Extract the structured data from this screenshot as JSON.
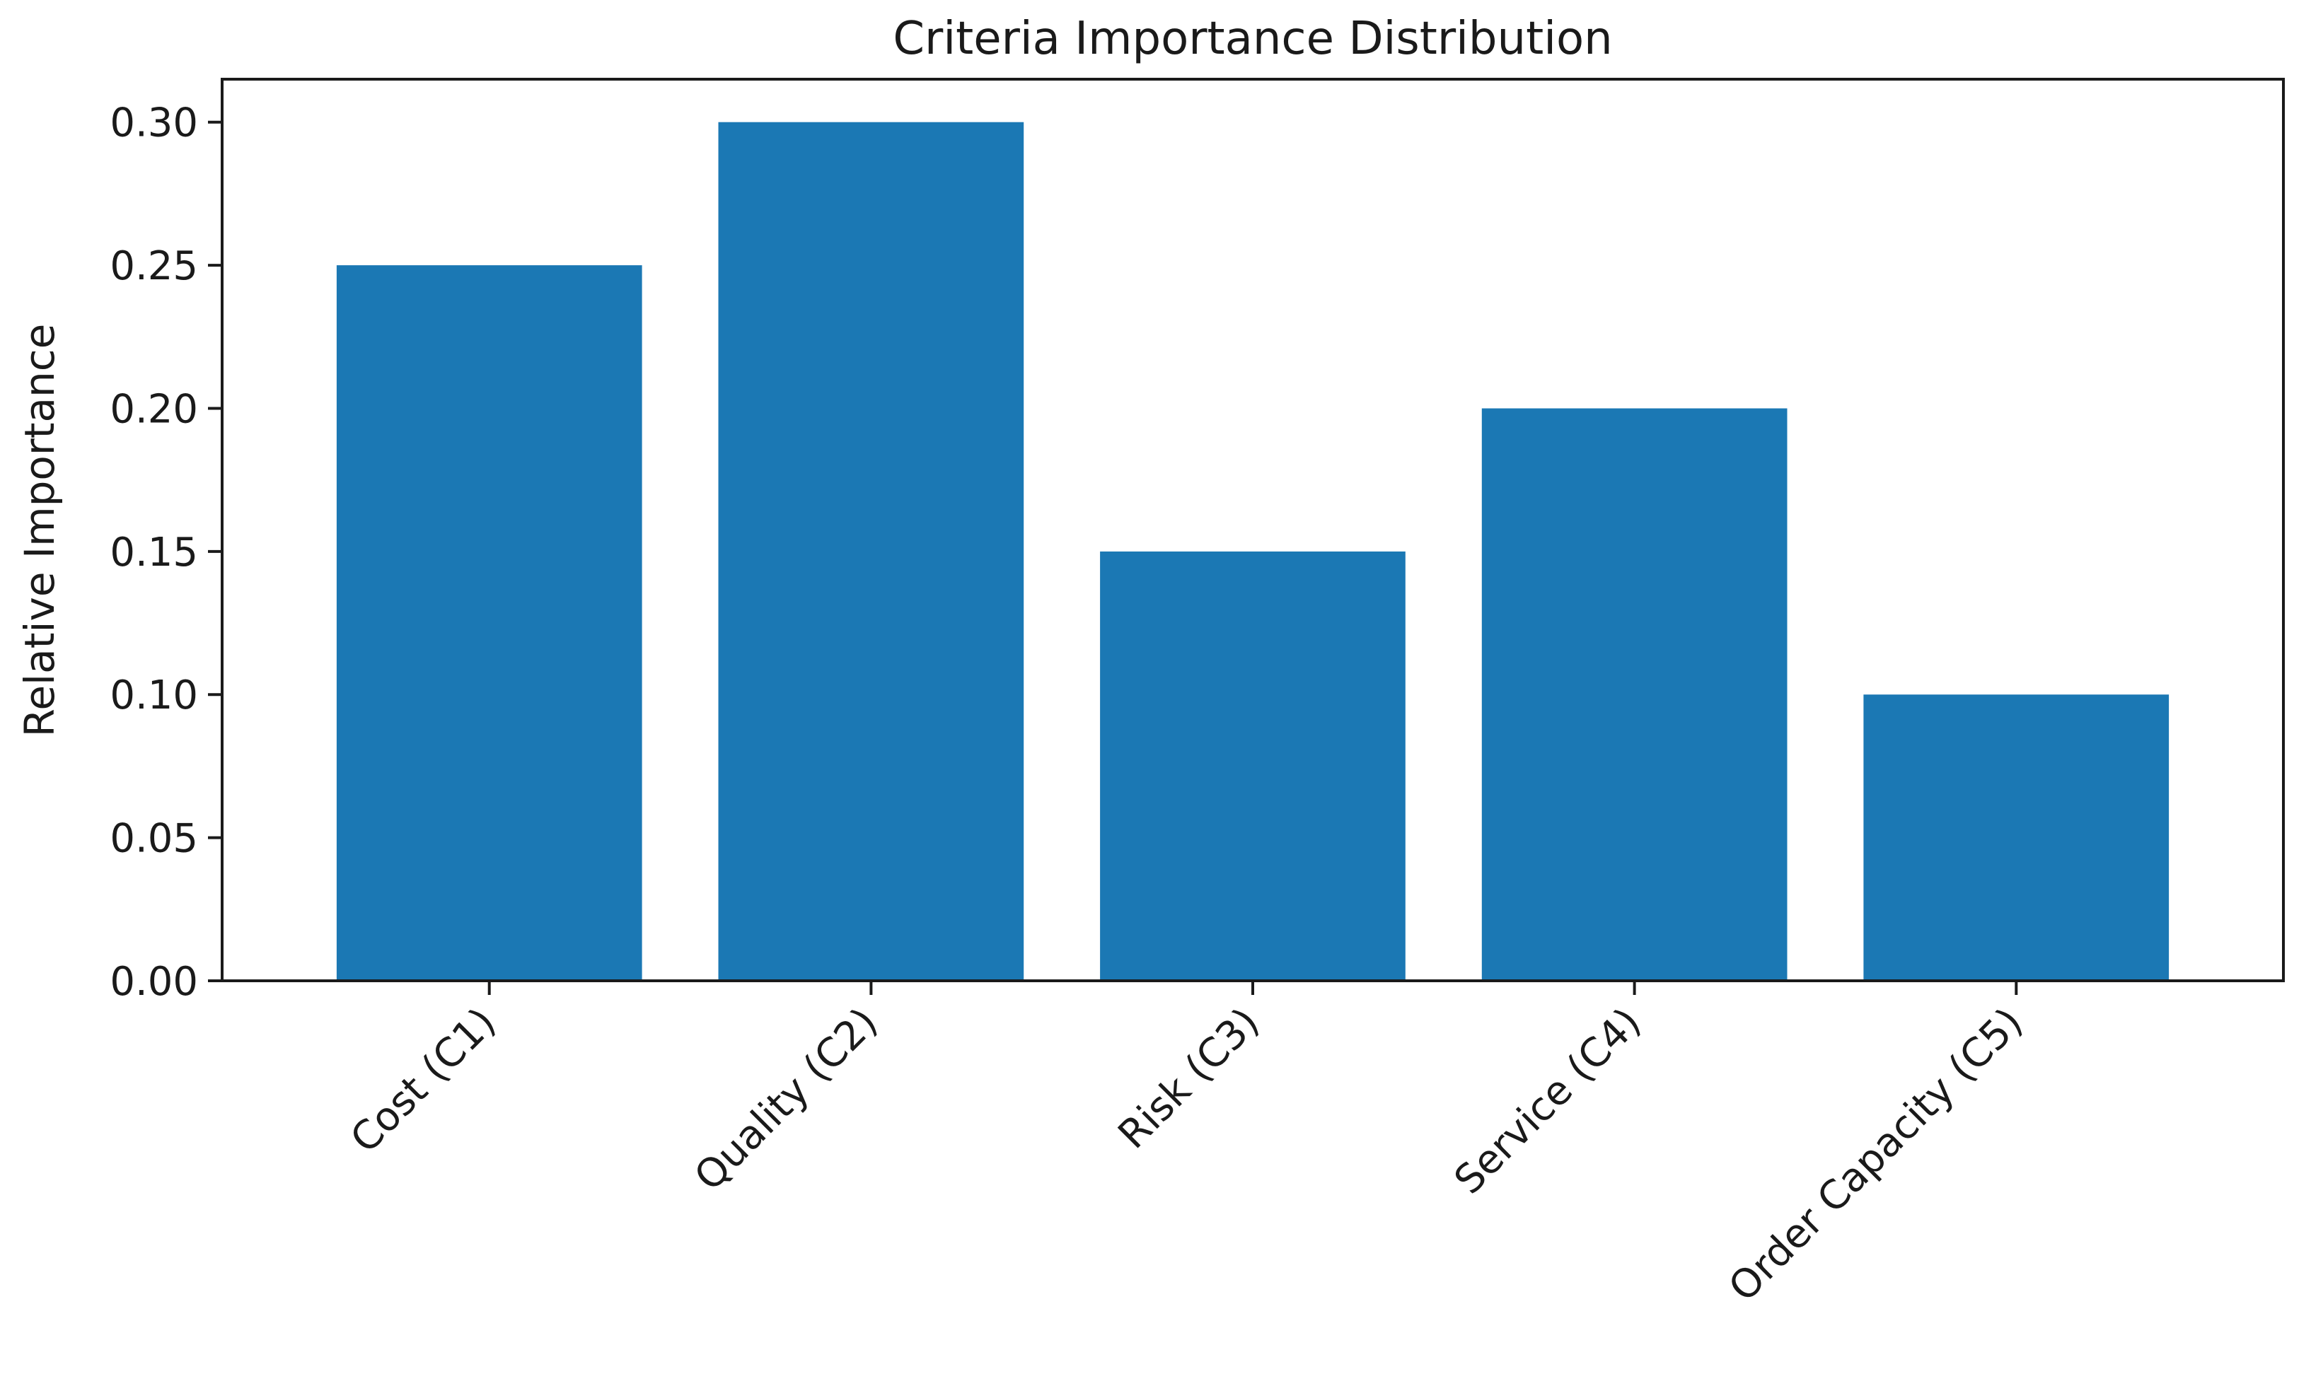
{
  "chart_data": {
    "type": "bar",
    "title": "Criteria Importance Distribution",
    "xlabel": "",
    "ylabel": "Relative Importance",
    "categories": [
      "Cost (C1)",
      "Quality (C2)",
      "Risk (C3)",
      "Service (C4)",
      "Order Capacity (C5)"
    ],
    "values": [
      0.25,
      0.3,
      0.15,
      0.2,
      0.1
    ],
    "ylim": [
      0,
      0.315
    ],
    "yticks": [
      "0.00",
      "0.05",
      "0.10",
      "0.15",
      "0.20",
      "0.25",
      "0.30"
    ],
    "bar_color": "#1b78b4",
    "grid": false,
    "legend": "none"
  }
}
